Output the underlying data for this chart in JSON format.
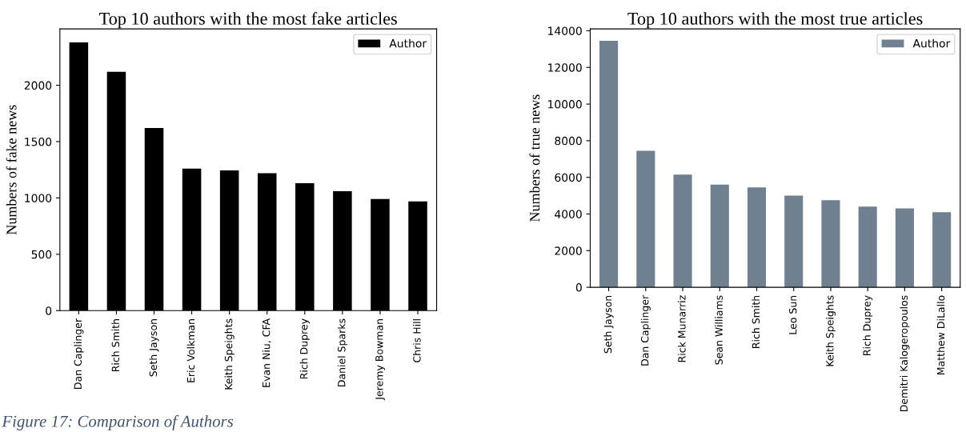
{
  "chart_data": [
    {
      "type": "bar",
      "title": "Top 10 authors with the most fake articles",
      "ylabel": "Numbers of fake news",
      "categories": [
        "Dan Caplinger",
        "Rich Smith",
        "Seth Jayson",
        "Eric Volkman",
        "Keith Speights",
        "Evan Niu, CFA",
        "Rich Duprey",
        "Daniel Sparks",
        "Jeremy Bowman",
        "Chris Hill"
      ],
      "series": [
        {
          "name": "Author",
          "color": "#000000",
          "values": [
            2380,
            2120,
            1620,
            1260,
            1245,
            1220,
            1130,
            1060,
            990,
            970
          ]
        }
      ],
      "ylim": [
        0,
        2500
      ],
      "yticks": [
        0,
        500,
        1000,
        1500,
        2000
      ],
      "grid": false,
      "legend": "top right",
      "annotations": [
        "Figure 17: Comparison of Authors"
      ]
    },
    {
      "type": "bar",
      "title": "Top 10 authors with the most true articles",
      "ylabel": "Numbers of true news",
      "categories": [
        "Seth Jayson",
        "Dan Caplinger",
        "Rick Munarriz",
        "Sean Williams",
        "Rich Smith",
        "Leo Sun",
        "Keith Speights",
        "Rich Duprey",
        "Demitri Kalogeropoulos",
        "Matthew DiLallo"
      ],
      "series": [
        {
          "name": "Author",
          "color": "#708090",
          "values": [
            13450,
            7450,
            6150,
            5600,
            5450,
            5000,
            4750,
            4400,
            4300,
            4100
          ]
        }
      ],
      "ylim": [
        0,
        14100
      ],
      "yticks": [
        0,
        2000,
        4000,
        6000,
        8000,
        10000,
        12000,
        14000
      ],
      "grid": false,
      "legend": "top right"
    }
  ]
}
